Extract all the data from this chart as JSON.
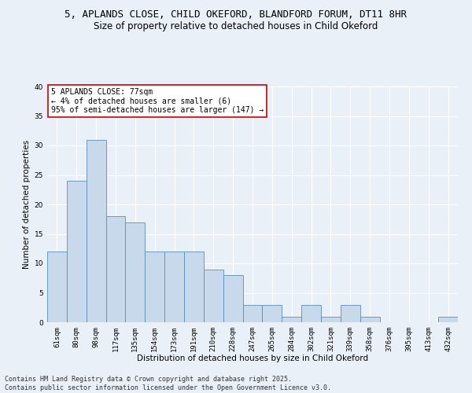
{
  "title_line1": "5, APLANDS CLOSE, CHILD OKEFORD, BLANDFORD FORUM, DT11 8HR",
  "title_line2": "Size of property relative to detached houses in Child Okeford",
  "xlabel": "Distribution of detached houses by size in Child Okeford",
  "ylabel": "Number of detached properties",
  "categories": [
    "61sqm",
    "80sqm",
    "98sqm",
    "117sqm",
    "135sqm",
    "154sqm",
    "173sqm",
    "191sqm",
    "210sqm",
    "228sqm",
    "247sqm",
    "265sqm",
    "284sqm",
    "302sqm",
    "321sqm",
    "339sqm",
    "358sqm",
    "376sqm",
    "395sqm",
    "413sqm",
    "432sqm"
  ],
  "values": [
    12,
    24,
    31,
    18,
    17,
    12,
    12,
    12,
    9,
    8,
    3,
    3,
    1,
    3,
    1,
    3,
    1,
    0,
    0,
    0,
    1
  ],
  "bar_color": "#c8d9eb",
  "bar_edge_color": "#5b8db8",
  "annotation_text": "5 APLANDS CLOSE: 77sqm\n← 4% of detached houses are smaller (6)\n95% of semi-detached houses are larger (147) →",
  "annotation_box_color": "#ffffff",
  "annotation_box_edge_color": "#cc0000",
  "reference_line_color": "#cc0000",
  "ylim": [
    0,
    40
  ],
  "yticks": [
    0,
    5,
    10,
    15,
    20,
    25,
    30,
    35,
    40
  ],
  "background_color": "#eaf0f8",
  "grid_color": "#ffffff",
  "footer_line1": "Contains HM Land Registry data © Crown copyright and database right 2025.",
  "footer_line2": "Contains public sector information licensed under the Open Government Licence v3.0.",
  "title_fontsize": 9,
  "subtitle_fontsize": 8.5,
  "axis_label_fontsize": 7.5,
  "tick_fontsize": 6.5,
  "annotation_fontsize": 7,
  "footer_fontsize": 6
}
